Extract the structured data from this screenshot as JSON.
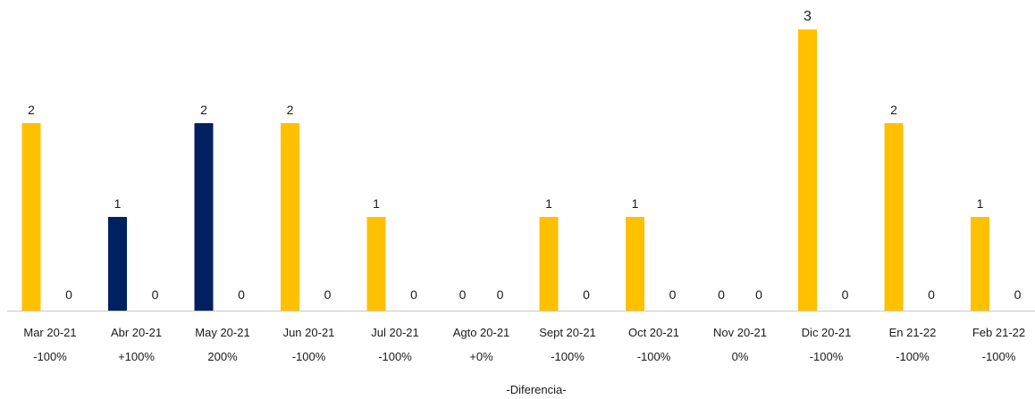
{
  "chart_data": {
    "type": "bar",
    "categories": [
      "Mar 20-21",
      "Abr 20-21",
      "May 20-21",
      "Jun 20-21",
      "Jul 20-21",
      "Agto 20-21",
      "Sept 20-21",
      "Oct 20-21",
      "Nov 20-21",
      "Dic 20-21",
      "En 21-22",
      "Feb 21-22"
    ],
    "series": [
      {
        "values": [
          2,
          0,
          0,
          2,
          1,
          0,
          1,
          1,
          0,
          3,
          2,
          1
        ],
        "color": "#FFC000"
      },
      {
        "values": [
          0,
          1,
          2,
          0,
          0,
          0,
          0,
          0,
          0,
          0,
          0,
          0
        ],
        "color": "#002060"
      }
    ],
    "series_order_note": "",
    "bar_layout": [
      [
        "a",
        "b"
      ],
      [
        "b",
        "a"
      ],
      [
        "b",
        "a"
      ],
      [
        "a",
        "b"
      ],
      [
        "a",
        "b"
      ],
      [
        "b",
        "a"
      ],
      [
        "a",
        "b"
      ],
      [
        "a",
        "b"
      ],
      [
        "b",
        "a"
      ],
      [
        "a",
        "b"
      ],
      [
        "a",
        "b"
      ],
      [
        "a",
        "b"
      ]
    ],
    "differences": [
      "-100%",
      "+100%",
      "200%",
      "-100%",
      "-100%",
      "+0%",
      "-100%",
      "-100%",
      "0%",
      "-100%",
      "-100%",
      "-100%"
    ],
    "xlabel": "-Diferencia-",
    "ylim": [
      0,
      3
    ],
    "grid": false,
    "legend": "none"
  }
}
